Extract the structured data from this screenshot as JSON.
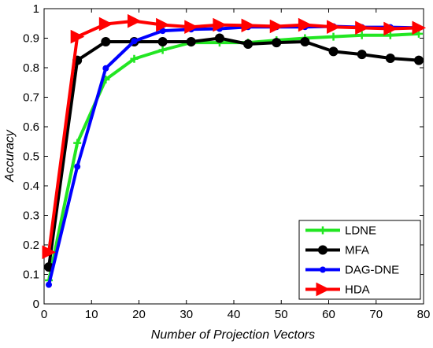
{
  "chart_data": {
    "type": "line",
    "xlabel": "Number of Projection Vectors",
    "ylabel": "Accuracy",
    "xlim": [
      0,
      80
    ],
    "ylim": [
      0,
      1
    ],
    "xticks": [
      "0",
      "10",
      "20",
      "30",
      "40",
      "50",
      "60",
      "70",
      "80"
    ],
    "yticks": [
      "0",
      "0.1",
      "0.2",
      "0.3",
      "0.4",
      "0.5",
      "0.6",
      "0.7",
      "0.8",
      "0.9",
      "1"
    ],
    "grid": false,
    "legend_position": "bottom-right",
    "x": [
      1,
      7,
      13,
      19,
      25,
      31,
      37,
      43,
      49,
      55,
      61,
      67,
      73,
      79
    ],
    "series": [
      {
        "name": "LDNE",
        "color": "#22e622",
        "marker": "plus",
        "values": [
          0.08,
          0.545,
          0.76,
          0.83,
          0.86,
          0.885,
          0.885,
          0.885,
          0.893,
          0.9,
          0.905,
          0.91,
          0.91,
          0.915
        ]
      },
      {
        "name": "MFA",
        "color": "#000000",
        "marker": "circle",
        "values": [
          0.125,
          0.825,
          0.888,
          0.888,
          0.888,
          0.888,
          0.9,
          0.88,
          0.885,
          0.888,
          0.855,
          0.845,
          0.832,
          0.825
        ]
      },
      {
        "name": "DAG-DNE",
        "color": "#0000ff",
        "marker": "dot",
        "values": [
          0.065,
          0.465,
          0.798,
          0.89,
          0.925,
          0.93,
          0.932,
          0.938,
          0.938,
          0.938,
          0.94,
          0.937,
          0.937,
          0.935
        ]
      },
      {
        "name": "HDA",
        "color": "#ff0000",
        "marker": "triangle-right",
        "values": [
          0.175,
          0.905,
          0.948,
          0.958,
          0.945,
          0.938,
          0.945,
          0.943,
          0.94,
          0.945,
          0.938,
          0.935,
          0.932,
          0.935
        ]
      }
    ]
  }
}
